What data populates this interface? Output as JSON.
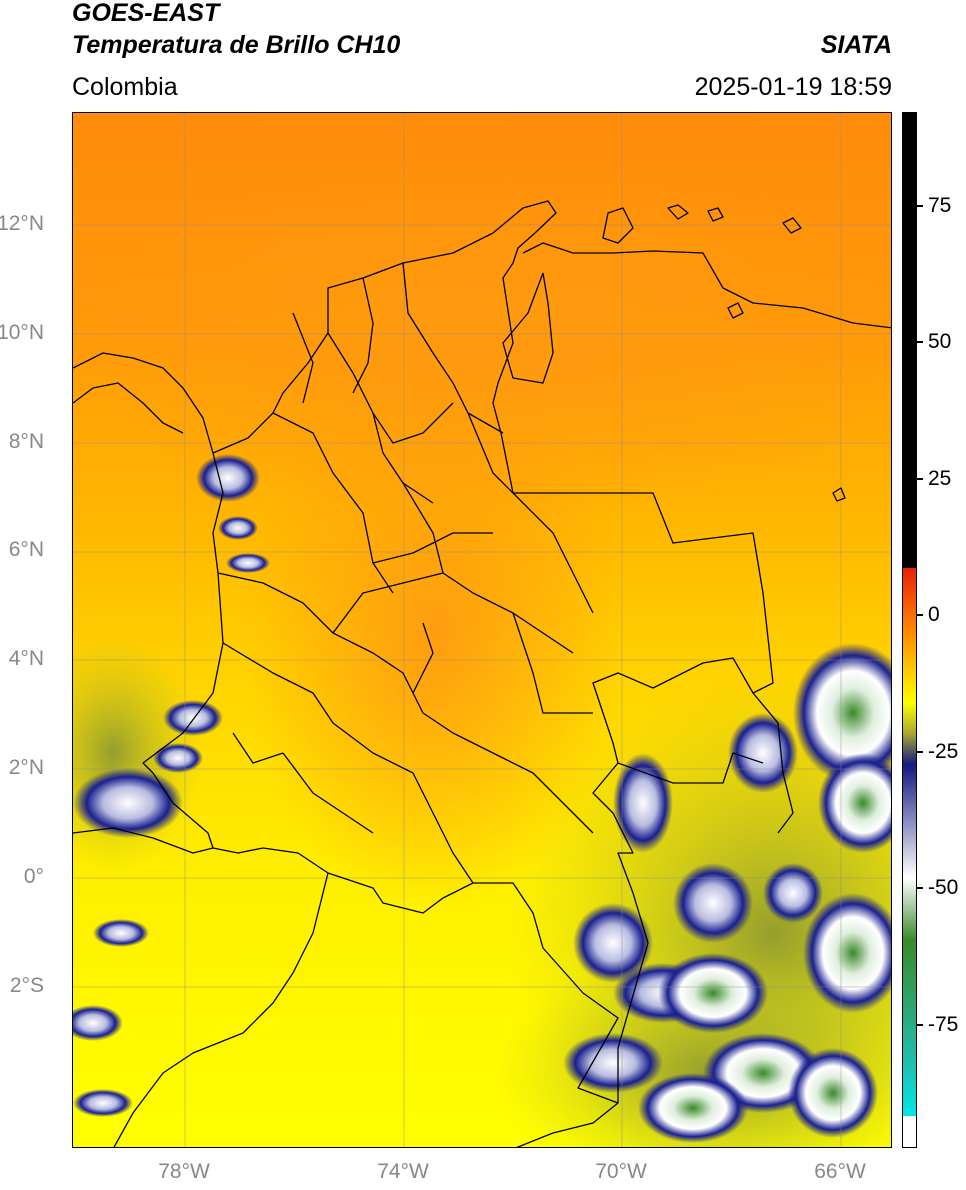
{
  "header": {
    "satellite": "GOES-EAST",
    "product": "Temperatura de Brillo CH10",
    "region": "Colombia",
    "organization": "SIATA",
    "timestamp": "2025-01-19 18:59"
  },
  "axes": {
    "lat_labels": [
      "12°N",
      "10°N",
      "8°N",
      "6°N",
      "4°N",
      "2°N",
      "0°",
      "2°S"
    ],
    "lon_labels": [
      "78°W",
      "74°W",
      "70°W",
      "66°W"
    ]
  },
  "colorbar": {
    "tick_labels": [
      "75",
      "50",
      "25",
      "0",
      "-25",
      "-50",
      "-75"
    ],
    "colors": {
      "black": "#000000",
      "red": "#e8200a",
      "orange": "#ff8800",
      "yellow": "#ffff00",
      "olive": "#a8a830",
      "navy": "#141a80",
      "white": "#ffffff",
      "green": "#3a8a2a",
      "teal": "#20c0b0",
      "cyan": "#00e8e8"
    }
  }
}
